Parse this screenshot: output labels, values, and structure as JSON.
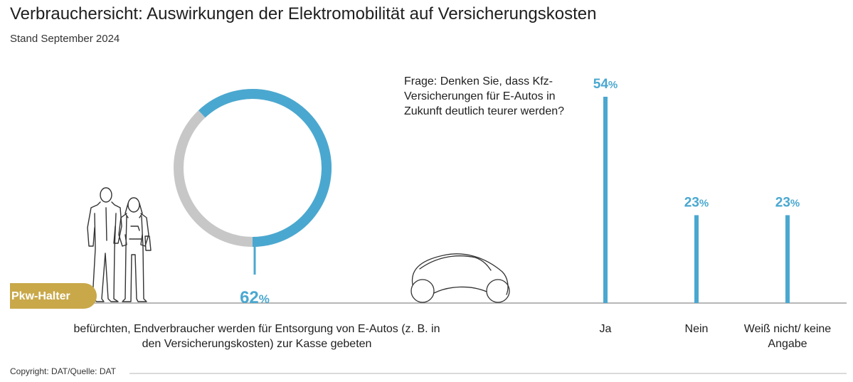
{
  "title": "Verbrauchersicht: Auswirkungen der Elektromobilität auf Versicherungskosten",
  "subtitle": "Stand September 2024",
  "question": "Frage: Denken Sie, dass Kfz-Versicherungen für E-Autos in Zukunft deutlich teurer werden?",
  "footer": "Copyright: DAT/Quelle: DAT",
  "colors": {
    "accent": "#4aa8d0",
    "ring_rest": "#c7c7c7",
    "badge": "#c9a84a",
    "baseline": "#8c8c8c"
  },
  "chart_data": [
    {
      "type": "pie",
      "label": "Pkw-Halter",
      "value": 62,
      "value_text": "62",
      "unit": "%",
      "description": "befürchten, Endverbraucher werden für Entsorgung von E-Autos (z. B. in den Versicherungskosten) zur Kasse gebeten"
    },
    {
      "type": "bar",
      "categories": [
        "Ja",
        "Nein",
        "Weiß nicht/ keine Angabe"
      ],
      "values": [
        54,
        23,
        23
      ],
      "value_texts": [
        "54",
        "23",
        "23"
      ],
      "unit": "%",
      "ylim": [
        0,
        54
      ]
    }
  ]
}
